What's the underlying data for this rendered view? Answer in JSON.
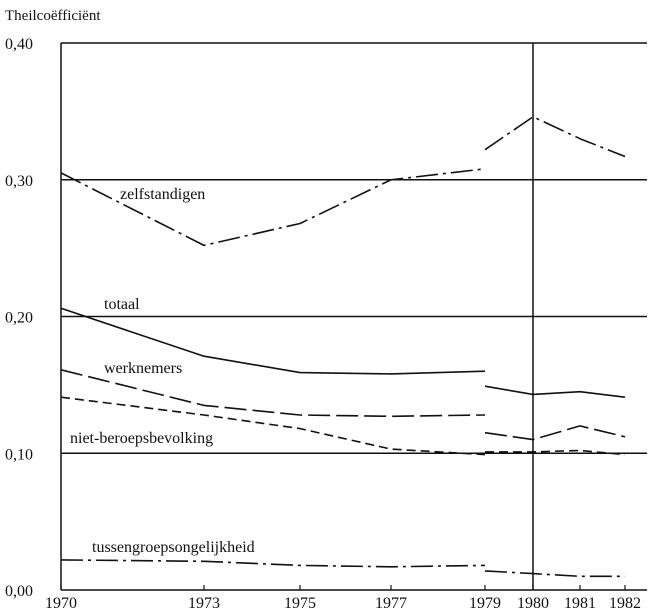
{
  "chart_data": {
    "type": "line",
    "ylabel": "Theilcoëfficiënt",
    "ylim": [
      0,
      0.4
    ],
    "xlim": [
      1970,
      1982
    ],
    "yticks": [
      {
        "value": 0.0,
        "label": "0,00"
      },
      {
        "value": 0.1,
        "label": "0,10"
      },
      {
        "value": 0.2,
        "label": "0,20"
      },
      {
        "value": 0.3,
        "label": "0,30"
      },
      {
        "value": 0.4,
        "label": "0,40"
      }
    ],
    "xticks": [
      {
        "value": 1970,
        "label": "1970"
      },
      {
        "value": 1973,
        "label": "1973"
      },
      {
        "value": 1975,
        "label": "1975"
      },
      {
        "value": 1977,
        "label": "1977"
      },
      {
        "value": 1979,
        "label": "1979"
      },
      {
        "value": 1980,
        "label": "1980"
      },
      {
        "value": 1981,
        "label": "1981"
      },
      {
        "value": 1982,
        "label": "1982"
      }
    ],
    "grid": "horizontal at each y tick; vertical line at 1980",
    "break_before": 1979,
    "series": [
      {
        "name": "zelfstandigen",
        "dash": "dash-dot",
        "segments": [
          [
            [
              1970,
              0.305
            ],
            [
              1973,
              0.252
            ],
            [
              1975,
              0.268
            ],
            [
              1977,
              0.3
            ],
            [
              1979,
              0.308
            ]
          ],
          [
            [
              1979,
              0.322
            ],
            [
              1980,
              0.346
            ],
            [
              1981,
              0.33
            ],
            [
              1982,
              0.317
            ]
          ]
        ]
      },
      {
        "name": "totaal",
        "dash": "solid",
        "segments": [
          [
            [
              1970,
              0.206
            ],
            [
              1973,
              0.171
            ],
            [
              1975,
              0.159
            ],
            [
              1977,
              0.158
            ],
            [
              1979,
              0.16
            ]
          ],
          [
            [
              1979,
              0.149
            ],
            [
              1980,
              0.143
            ],
            [
              1981,
              0.145
            ],
            [
              1982,
              0.141
            ]
          ]
        ]
      },
      {
        "name": "werknemers",
        "dash": "long-dash",
        "segments": [
          [
            [
              1970,
              0.161
            ],
            [
              1973,
              0.135
            ],
            [
              1975,
              0.128
            ],
            [
              1977,
              0.127
            ],
            [
              1979,
              0.128
            ]
          ],
          [
            [
              1979,
              0.115
            ],
            [
              1980,
              0.11
            ],
            [
              1981,
              0.12
            ],
            [
              1982,
              0.112
            ]
          ]
        ]
      },
      {
        "name": "niet-beroepsbevolking",
        "dash": "short-dash",
        "segments": [
          [
            [
              1970,
              0.141
            ],
            [
              1973,
              0.128
            ],
            [
              1975,
              0.118
            ],
            [
              1977,
              0.103
            ],
            [
              1979,
              0.099
            ]
          ],
          [
            [
              1979,
              0.101
            ],
            [
              1980,
              0.101
            ],
            [
              1981,
              0.102
            ],
            [
              1982,
              0.099
            ]
          ]
        ]
      },
      {
        "name": "tussengroepsongelijkheid",
        "dash": "dash-dot",
        "segments": [
          [
            [
              1970,
              0.022
            ],
            [
              1973,
              0.021
            ],
            [
              1975,
              0.018
            ],
            [
              1977,
              0.017
            ],
            [
              1979,
              0.018
            ]
          ],
          [
            [
              1979,
              0.014
            ],
            [
              1980,
              0.012
            ],
            [
              1981,
              0.01
            ],
            [
              1982,
              0.01
            ]
          ]
        ]
      }
    ]
  }
}
